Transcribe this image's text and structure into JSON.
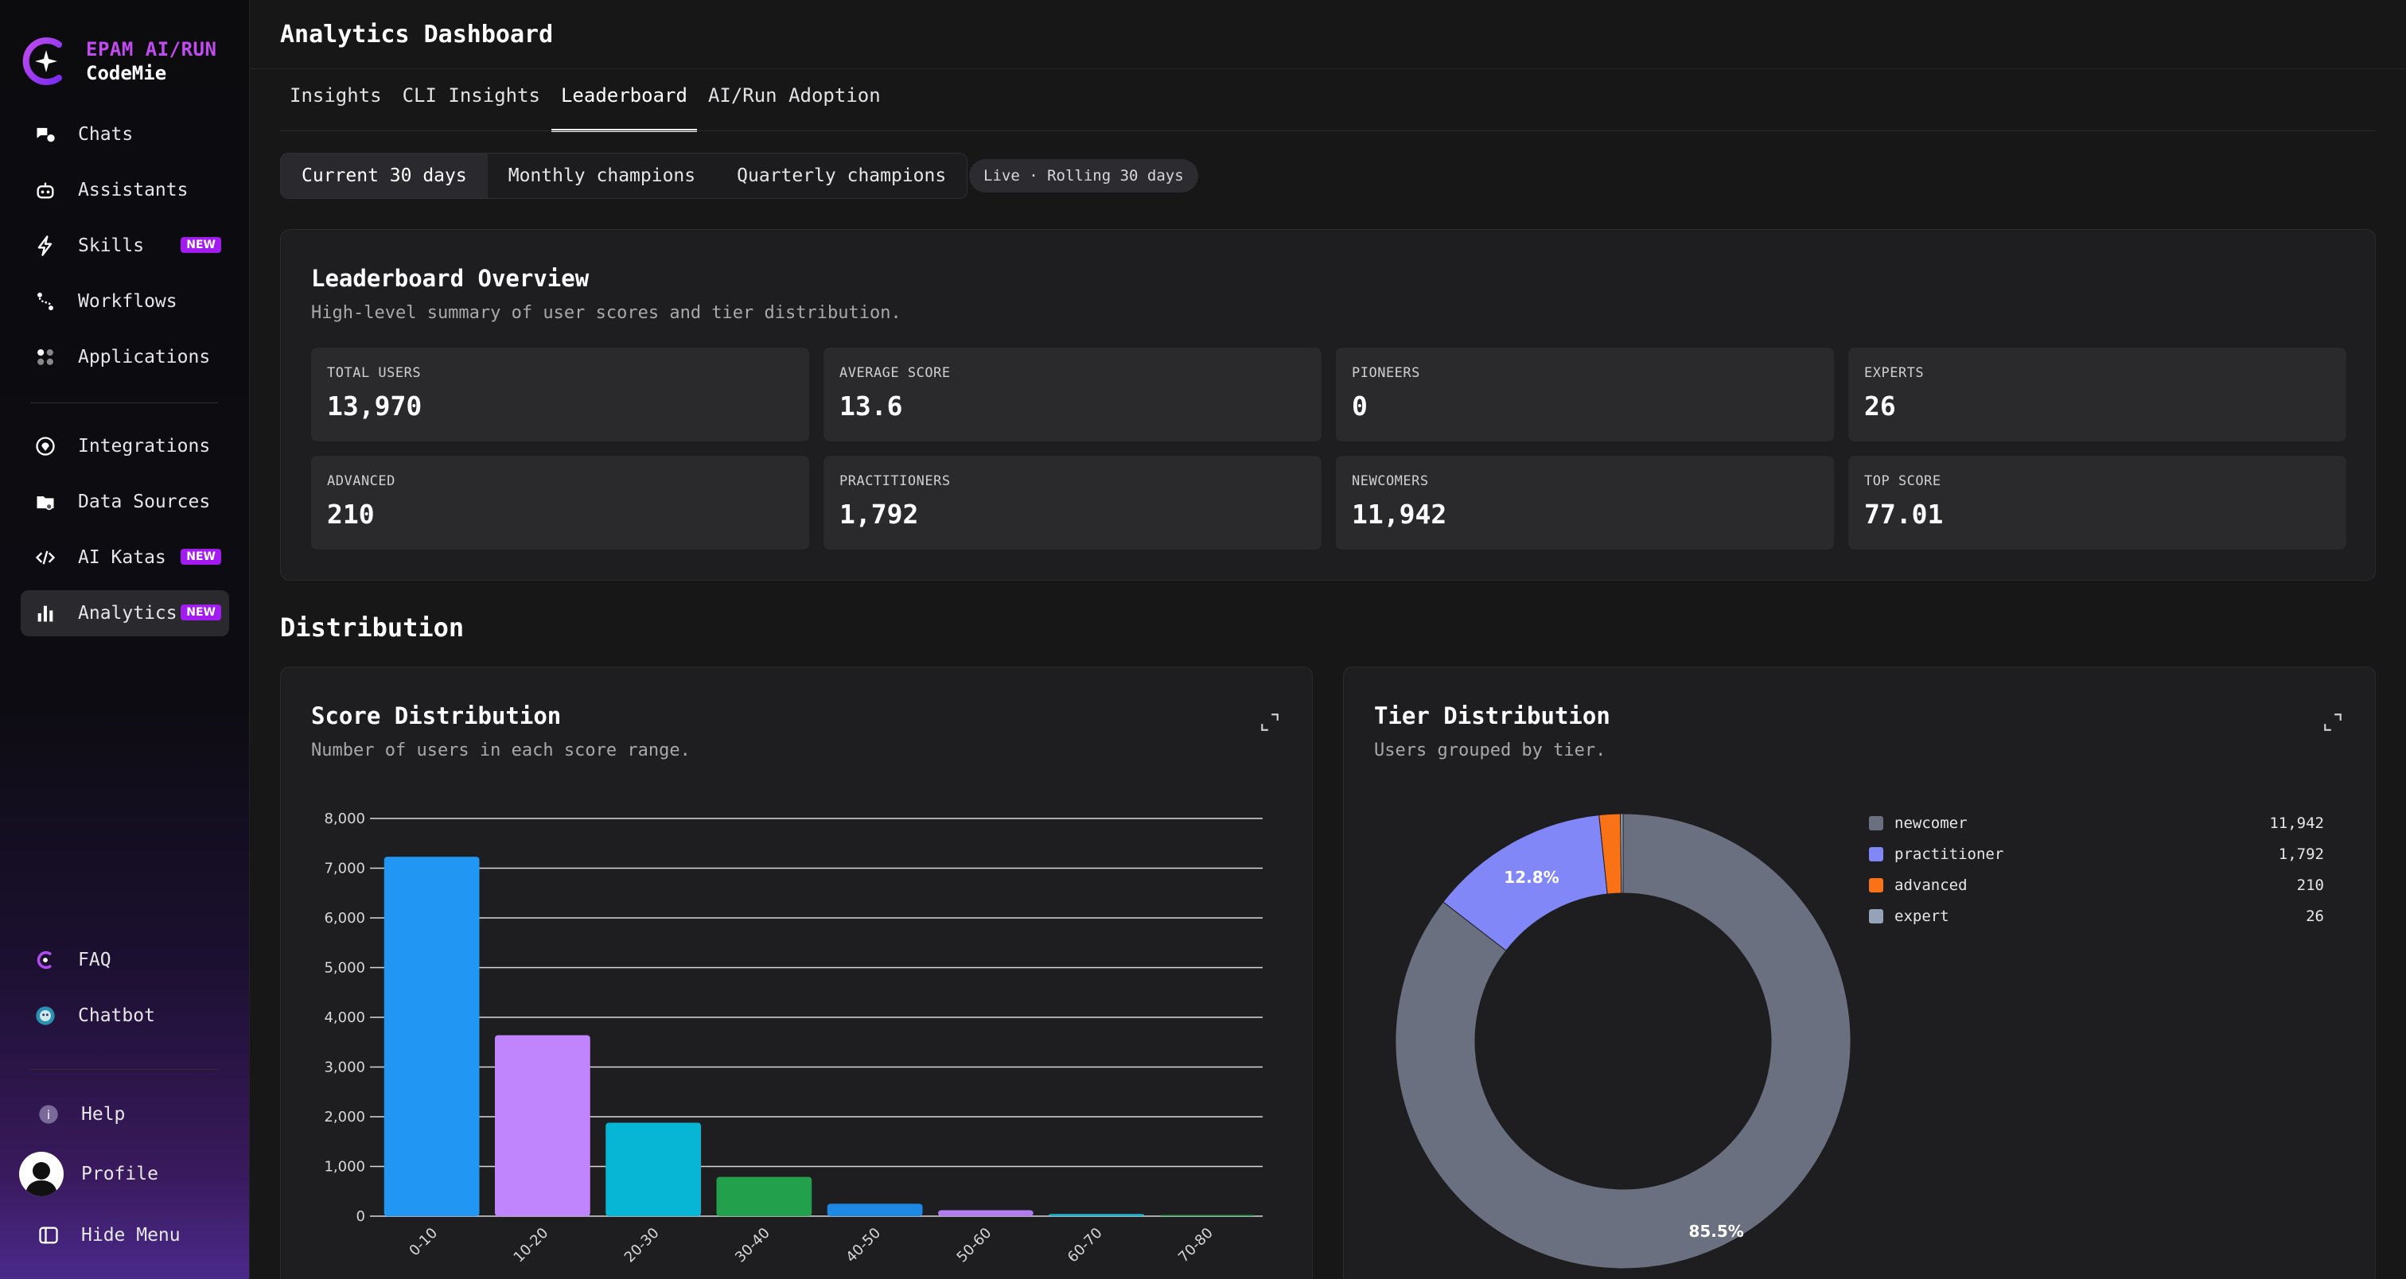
{
  "brand": {
    "line1": "EPAM AI/RUN",
    "line2": "CodeMie"
  },
  "sidebar": {
    "nav_top": [
      {
        "label": "Chats",
        "icon": "chat-icon"
      },
      {
        "label": "Assistants",
        "icon": "robot-icon"
      },
      {
        "label": "Skills",
        "icon": "lightning-icon",
        "badge": "NEW"
      },
      {
        "label": "Workflows",
        "icon": "workflow-icon"
      },
      {
        "label": "Applications",
        "icon": "apps-icon"
      }
    ],
    "nav_mid": [
      {
        "label": "Integrations",
        "icon": "integrations-icon"
      },
      {
        "label": "Data Sources",
        "icon": "data-sources-icon"
      },
      {
        "label": "AI Katas",
        "icon": "code-icon",
        "badge": "NEW"
      },
      {
        "label": "Analytics",
        "icon": "bar-chart-icon",
        "badge": "NEW",
        "active": true
      }
    ],
    "nav_bottom": [
      {
        "label": "FAQ",
        "icon": "faq-icon"
      },
      {
        "label": "Chatbot",
        "icon": "chatbot-icon"
      }
    ],
    "footer": {
      "help": "Help",
      "profile": "Profile",
      "hide_menu": "Hide Menu",
      "help_icon_text": "i"
    }
  },
  "header": {
    "title": "Analytics Dashboard"
  },
  "tabs": [
    {
      "label": "Insights"
    },
    {
      "label": "CLI Insights"
    },
    {
      "label": "Leaderboard",
      "active": true
    },
    {
      "label": "AI/Run Adoption"
    }
  ],
  "periods": [
    {
      "label": "Current 30 days",
      "active": true
    },
    {
      "label": "Monthly champions"
    },
    {
      "label": "Quarterly champions"
    }
  ],
  "live_pill": "Live · Rolling 30 days",
  "overview": {
    "title": "Leaderboard Overview",
    "subtitle": "High-level summary of user scores and tier distribution.",
    "stats": [
      {
        "label": "TOTAL USERS",
        "value": "13,970"
      },
      {
        "label": "AVERAGE SCORE",
        "value": "13.6"
      },
      {
        "label": "PIONEERS",
        "value": "0"
      },
      {
        "label": "EXPERTS",
        "value": "26"
      },
      {
        "label": "ADVANCED",
        "value": "210"
      },
      {
        "label": "PRACTITIONERS",
        "value": "1,792"
      },
      {
        "label": "NEWCOMERS",
        "value": "11,942"
      },
      {
        "label": "TOP SCORE",
        "value": "77.01"
      }
    ]
  },
  "distribution": {
    "section_title": "Distribution"
  },
  "score_card": {
    "title": "Score Distribution",
    "subtitle": "Number of users in each score range."
  },
  "tier_card": {
    "title": "Tier Distribution",
    "subtitle": "Users grouped by tier."
  },
  "chart_data": [
    {
      "type": "bar",
      "categories": [
        "0-10",
        "10-20",
        "20-30",
        "30-40",
        "40-50",
        "50-60",
        "60-70",
        "70-80"
      ],
      "values": [
        7230,
        3640,
        1880,
        790,
        250,
        120,
        45,
        8
      ],
      "colors": [
        "#2196f3",
        "#c084fc",
        "#06b6d4",
        "#22a04b",
        "#1e88e5",
        "#b07cf0",
        "#1ab4d0",
        "#22a04b"
      ],
      "ylim": [
        0,
        8000
      ],
      "yticks": [
        0,
        1000,
        2000,
        3000,
        4000,
        5000,
        6000,
        7000,
        8000
      ],
      "ytick_labels": [
        "0",
        "1,000",
        "2,000",
        "3,000",
        "4,000",
        "5,000",
        "6,000",
        "7,000",
        "8,000"
      ],
      "grid": true
    },
    {
      "type": "pie",
      "donut": true,
      "labels": [
        "newcomer",
        "practitioner",
        "advanced",
        "expert"
      ],
      "values": [
        11942,
        1792,
        210,
        26
      ],
      "value_labels": [
        "11,942",
        "1,792",
        "210",
        "26"
      ],
      "colors": [
        "#6b7080",
        "#8187f7",
        "#f97316",
        "#94a3b8"
      ],
      "slice_labels": [
        "85.5%",
        "12.8%",
        "",
        ""
      ],
      "legend": "right"
    }
  ]
}
